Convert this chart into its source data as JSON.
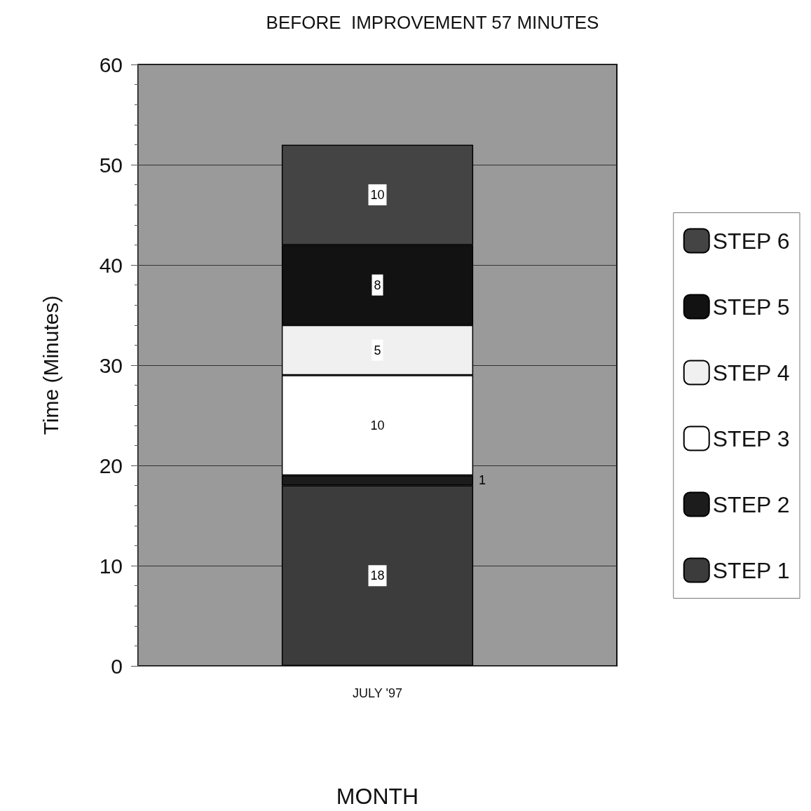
{
  "chart_data": {
    "type": "bar",
    "title": "BEFORE  IMPROVEMENT 57 MINUTES",
    "xlabel": "MONTH",
    "ylabel": "Time (Minutes)",
    "categories": [
      "JULY '97"
    ],
    "series": [
      {
        "name": "STEP 1",
        "color": "#3c3c3c",
        "values": [
          18
        ]
      },
      {
        "name": "STEP 2",
        "color": "#1c1c1c",
        "values": [
          1
        ]
      },
      {
        "name": "STEP 3",
        "color": "#ffffff",
        "values": [
          10
        ]
      },
      {
        "name": "STEP 4",
        "color": "#f0f0f0",
        "values": [
          5
        ]
      },
      {
        "name": "STEP 5",
        "color": "#121212",
        "values": [
          8
        ]
      },
      {
        "name": "STEP 6",
        "color": "#444444",
        "values": [
          10
        ]
      }
    ],
    "stacked": true,
    "ylim": [
      0,
      60
    ],
    "yticks": [
      0,
      10,
      20,
      30,
      40,
      50,
      60
    ],
    "grid": "y",
    "legend": "right",
    "data_labels": true
  }
}
